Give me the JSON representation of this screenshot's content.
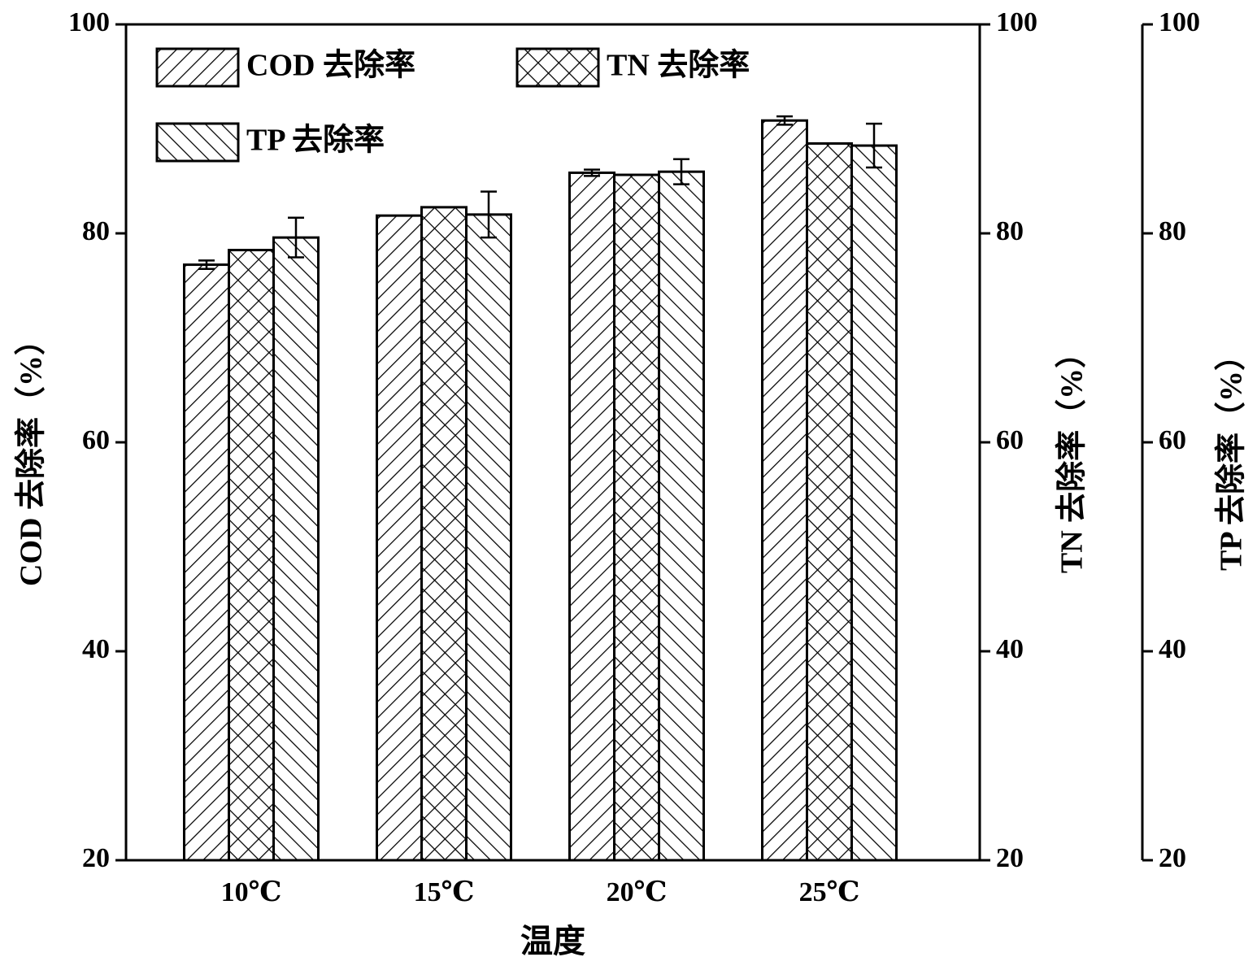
{
  "chart_data": {
    "type": "bar",
    "x_label": "温度",
    "y_label": "COD 去除率（%）",
    "y2_label": "TN 去除率（%）",
    "y3_label": "TP 去除率（%）",
    "categories": [
      "10℃",
      "15℃",
      "20℃",
      "25℃"
    ],
    "series": [
      {
        "name": "COD 去除率",
        "color": "#000000",
        "hatch": "/",
        "axis": "y",
        "values": [
          77.0,
          81.7,
          85.8,
          90.8
        ],
        "errors": [
          0.4,
          0,
          0.3,
          0.4
        ]
      },
      {
        "name": "TN 去除率",
        "color": "#000000",
        "hatch": "x",
        "axis": "y2",
        "values": [
          78.4,
          82.5,
          85.6,
          88.6
        ]
      },
      {
        "name": "TP 去除率",
        "color": "#000000",
        "hatch": "\\",
        "axis": "y3",
        "values": [
          79.6,
          81.8,
          85.9,
          88.4
        ],
        "errors": [
          1.9,
          2.2,
          1.2,
          2.1
        ]
      }
    ],
    "ylim": [
      20,
      100
    ],
    "yticks": [
      20,
      40,
      60,
      80,
      100
    ],
    "y2lim": [
      20,
      100
    ],
    "y2ticks": [
      20,
      40,
      60,
      80,
      100
    ],
    "y3lim": [
      20,
      100
    ],
    "y3ticks": [
      20,
      40,
      60,
      80,
      100
    ],
    "legend": "upper left",
    "grid": false
  }
}
